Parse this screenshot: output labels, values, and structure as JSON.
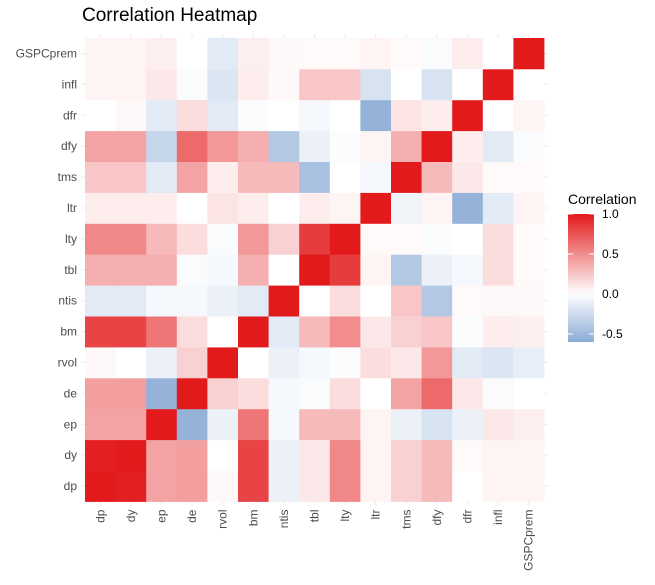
{
  "chart_data": {
    "type": "heatmap",
    "title": "Correlation Heatmap",
    "x_labels": [
      "dp",
      "dy",
      "ep",
      "de",
      "rvol",
      "bm",
      "ntis",
      "tbl",
      "lty",
      "ltr",
      "tms",
      "dfy",
      "dfr",
      "infl",
      "GSPCprem"
    ],
    "y_labels": [
      "dp",
      "dy",
      "ep",
      "de",
      "rvol",
      "bm",
      "ntis",
      "tbl",
      "lty",
      "ltr",
      "tms",
      "dfy",
      "dfr",
      "infl",
      "GSPCprem"
    ],
    "values": [
      [
        1.0,
        0.98,
        0.4,
        0.42,
        0.03,
        0.82,
        -0.1,
        0.1,
        0.52,
        0.05,
        0.2,
        0.3,
        0.0,
        0.05,
        0.05
      ],
      [
        0.98,
        1.0,
        0.4,
        0.42,
        0.0,
        0.82,
        -0.1,
        0.1,
        0.52,
        0.05,
        0.2,
        0.3,
        0.02,
        0.05,
        0.05
      ],
      [
        0.4,
        0.4,
        1.0,
        -0.55,
        -0.1,
        0.6,
        -0.05,
        0.3,
        0.3,
        0.05,
        -0.1,
        -0.2,
        -0.1,
        0.1,
        0.07
      ],
      [
        0.42,
        0.42,
        -0.55,
        1.0,
        0.2,
        0.15,
        -0.05,
        -0.03,
        0.15,
        0.0,
        0.4,
        0.65,
        0.1,
        -0.03,
        0.0
      ],
      [
        0.03,
        0.0,
        -0.1,
        0.2,
        1.0,
        0.0,
        -0.1,
        -0.05,
        -0.02,
        0.15,
        0.1,
        0.45,
        -0.15,
        -0.18,
        -0.12
      ],
      [
        0.82,
        0.82,
        0.6,
        0.15,
        0.0,
        1.0,
        -0.15,
        0.3,
        0.5,
        0.1,
        0.2,
        0.25,
        -0.02,
        0.08,
        0.07
      ],
      [
        -0.15,
        -0.15,
        -0.05,
        -0.05,
        -0.1,
        -0.15,
        1.0,
        0.0,
        0.15,
        0.0,
        0.25,
        -0.4,
        0.02,
        0.03,
        0.03
      ],
      [
        0.35,
        0.35,
        0.35,
        -0.03,
        -0.05,
        0.35,
        0.0,
        1.0,
        0.85,
        0.05,
        -0.4,
        -0.1,
        -0.05,
        0.15,
        0.02
      ],
      [
        0.52,
        0.52,
        0.3,
        0.15,
        -0.03,
        0.45,
        0.2,
        0.85,
        1.0,
        0.02,
        0.02,
        -0.02,
        0.0,
        0.15,
        0.02
      ],
      [
        0.08,
        0.08,
        0.08,
        0.0,
        0.12,
        0.08,
        0.0,
        0.08,
        0.05,
        1.0,
        -0.08,
        0.05,
        -0.55,
        -0.15,
        0.05
      ],
      [
        0.25,
        0.25,
        -0.15,
        0.4,
        0.08,
        0.3,
        0.3,
        -0.45,
        0.0,
        -0.05,
        1.0,
        0.3,
        0.1,
        0.02,
        0.02
      ],
      [
        0.4,
        0.4,
        -0.3,
        0.65,
        0.45,
        0.35,
        -0.4,
        -0.1,
        -0.02,
        0.05,
        0.35,
        1.0,
        0.08,
        -0.15,
        -0.03
      ],
      [
        0.0,
        0.03,
        -0.15,
        0.15,
        -0.15,
        -0.02,
        0.0,
        -0.05,
        0.0,
        -0.55,
        0.12,
        0.08,
        1.0,
        0.0,
        0.05
      ],
      [
        0.05,
        0.05,
        0.1,
        -0.03,
        -0.18,
        0.08,
        0.03,
        0.25,
        0.25,
        -0.2,
        0.0,
        -0.2,
        0.0,
        1.0,
        0.0
      ],
      [
        0.05,
        0.05,
        0.07,
        0.0,
        -0.15,
        0.07,
        0.03,
        0.02,
        0.02,
        0.05,
        0.02,
        -0.03,
        0.08,
        0.0,
        1.0
      ]
    ],
    "color_scale": {
      "low": "#8bacd5",
      "mid": "#ffffff",
      "high": "#e31a1c",
      "limits": [
        -0.6,
        1.0
      ]
    },
    "legend": {
      "title": "Correlation",
      "position": "right",
      "ticks": [
        1.0,
        0.5,
        0.0,
        -0.5
      ],
      "tick_labels": [
        "1.0",
        "0.5",
        "0.0",
        "-0.5"
      ]
    },
    "grid": true
  }
}
